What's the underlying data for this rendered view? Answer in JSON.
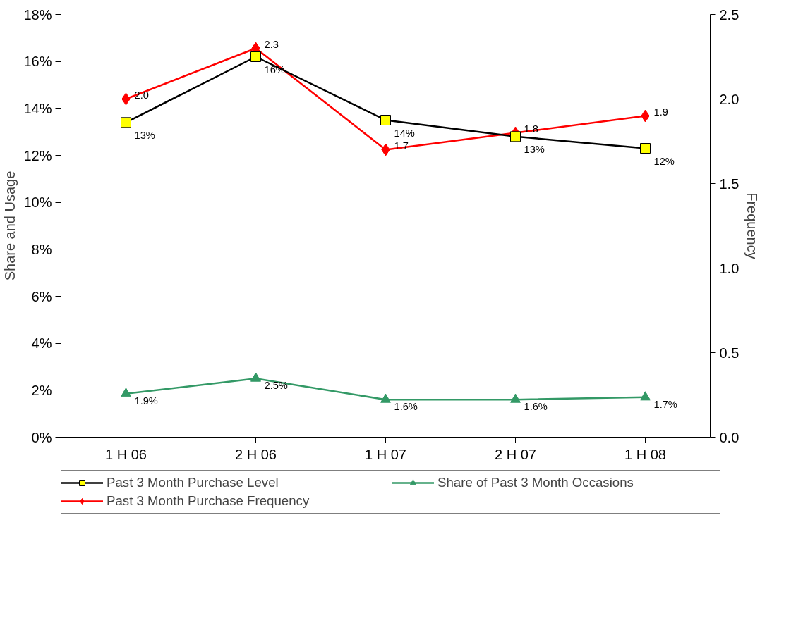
{
  "chart_data": {
    "type": "line",
    "ylabel": "Share and Usage",
    "y2label": "Frequency",
    "categories": [
      "1 H 06",
      "2 H 06",
      "1 H 07",
      "2 H 07",
      "1 H 08"
    ],
    "ylim": [
      0,
      18
    ],
    "yticks": [
      {
        "value": 0,
        "label": "0%"
      },
      {
        "value": 2,
        "label": "2%"
      },
      {
        "value": 4,
        "label": "4%"
      },
      {
        "value": 6,
        "label": "6%"
      },
      {
        "value": 8,
        "label": "8%"
      },
      {
        "value": 10,
        "label": "10%"
      },
      {
        "value": 12,
        "label": "12%"
      },
      {
        "value": 14,
        "label": "14%"
      },
      {
        "value": 16,
        "label": "16%"
      },
      {
        "value": 18,
        "label": "18%"
      }
    ],
    "y2lim": [
      0,
      2.5
    ],
    "y2ticks": [
      {
        "value": 0,
        "label": "0.0"
      },
      {
        "value": 0.5,
        "label": "0.5"
      },
      {
        "value": 1,
        "label": "1.0"
      },
      {
        "value": 1.5,
        "label": "1.5"
      },
      {
        "value": 2,
        "label": "2.0"
      },
      {
        "value": 2.5,
        "label": "2.5"
      }
    ],
    "legend": "bottom",
    "grid": false,
    "series": [
      {
        "name": "Past 3 Month Purchase Level",
        "color": "#000000",
        "marker": "square",
        "values": [
          13.4,
          16.2,
          13.5,
          12.8,
          12.3
        ],
        "value_labels": [
          "13%",
          "16%",
          "14%",
          "13%",
          "12%"
        ]
      },
      {
        "name": "Share of Past 3 Month Occasions",
        "color": "#339966",
        "marker": "triangle",
        "values": [
          1.85,
          2.5,
          1.6,
          1.6,
          1.7
        ],
        "value_labels": [
          "1.9%",
          "2.5%",
          "1.6%",
          "1.6%",
          "1.7%"
        ]
      },
      {
        "name": "Past 3 Month Purchase Frequency",
        "color": "#ff0000",
        "marker": "diamond",
        "axis": "y2",
        "values": [
          2.0,
          2.3,
          1.7,
          1.8,
          1.9
        ],
        "value_labels": [
          "2.0",
          "2.3",
          "1.7",
          "1.8",
          "1.9"
        ]
      }
    ]
  }
}
